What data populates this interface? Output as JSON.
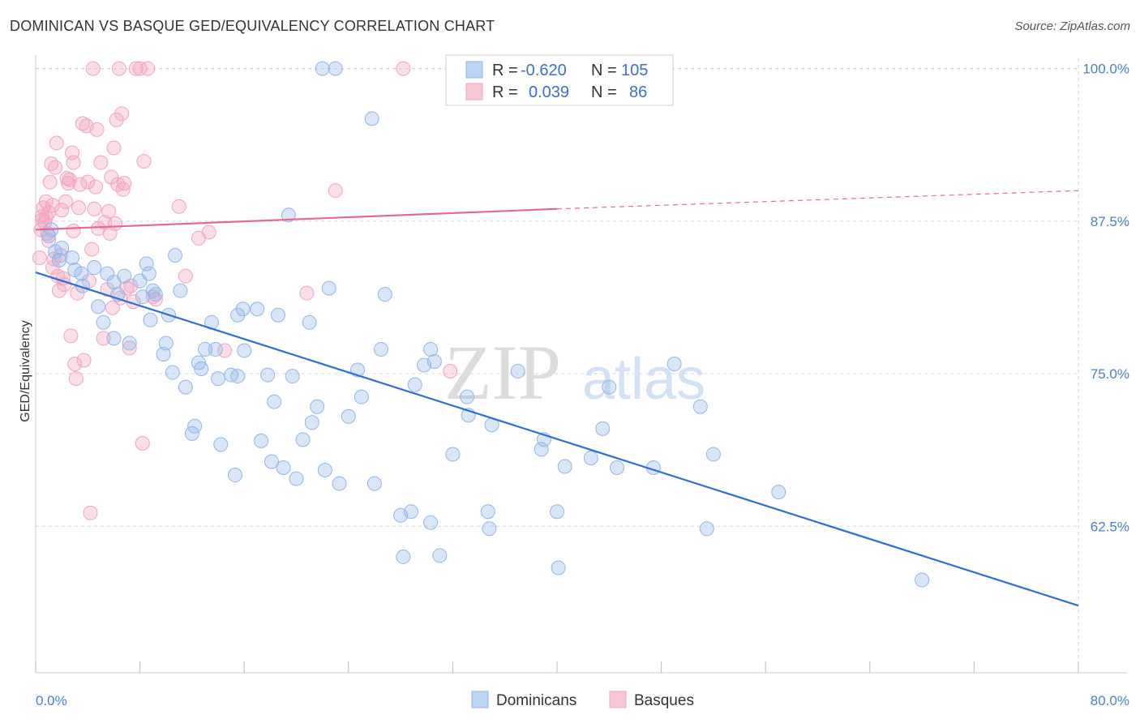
{
  "title": "DOMINICAN VS BASQUE GED/EQUIVALENCY CORRELATION CHART",
  "source": "Source: ZipAtlas.com",
  "watermark": {
    "zip": "ZIP",
    "atlas": "atlas"
  },
  "colors": {
    "dominican": "#8fb6ea",
    "dominican_line": "#2d6fd1",
    "basque": "#f4a3bd",
    "basque_line": "#e46a94",
    "tick": "#4a7fd0",
    "grid": "#d8d8d8"
  },
  "legend_box": {
    "rows": [
      {
        "r_label": "R =",
        "r_value": "-0.620",
        "n_label": "N =",
        "n_value": "105"
      },
      {
        "r_label": "R =",
        "r_value": "0.039",
        "n_label": "N =",
        "n_value": "86"
      }
    ]
  },
  "chart_data": {
    "type": "scatter",
    "title": "DOMINICAN VS BASQUE GED/EQUIVALENCY CORRELATION CHART",
    "xlabel": "",
    "ylabel": "GED/Equivalency",
    "xlim": [
      0,
      80
    ],
    "ylim": [
      50.5,
      101.5
    ],
    "x_tick_labels": [
      "0.0%",
      "80.0%"
    ],
    "y_ticks": [
      62.5,
      75.0,
      87.5,
      100.0
    ],
    "y_tick_labels": [
      "62.5%",
      "75.0%",
      "87.5%",
      "100.0%"
    ],
    "grid": true,
    "legend_position": "top-center",
    "series": [
      {
        "name": "Dominicans",
        "r": -0.62,
        "n": 105,
        "trend": {
          "x": [
            0,
            80
          ],
          "y": [
            83.3,
            56.0
          ]
        },
        "points": [
          [
            1.2,
            86.8
          ],
          [
            1.5,
            85.0
          ],
          [
            2.0,
            85.3
          ],
          [
            2.8,
            84.5
          ],
          [
            3.0,
            83.5
          ],
          [
            3.6,
            82.2
          ],
          [
            4.5,
            83.7
          ],
          [
            5.5,
            83.2
          ],
          [
            4.8,
            80.5
          ],
          [
            5.2,
            79.2
          ],
          [
            6.0,
            82.5
          ],
          [
            6.3,
            81.5
          ],
          [
            6.8,
            83.0
          ],
          [
            7.2,
            77.5
          ],
          [
            8.0,
            82.6
          ],
          [
            8.2,
            81.3
          ],
          [
            8.5,
            84.0
          ],
          [
            8.7,
            83.2
          ],
          [
            8.8,
            79.4
          ],
          [
            9.0,
            81.8
          ],
          [
            9.2,
            81.5
          ],
          [
            9.8,
            76.6
          ],
          [
            10.2,
            79.8
          ],
          [
            10.5,
            75.1
          ],
          [
            10.7,
            84.7
          ],
          [
            11.1,
            81.8
          ],
          [
            11.5,
            73.9
          ],
          [
            12.0,
            70.1
          ],
          [
            12.2,
            70.7
          ],
          [
            12.5,
            75.9
          ],
          [
            12.7,
            75.4
          ],
          [
            13.0,
            77.0
          ],
          [
            13.5,
            79.2
          ],
          [
            13.8,
            77.0
          ],
          [
            14.0,
            74.6
          ],
          [
            14.2,
            69.2
          ],
          [
            15.0,
            74.9
          ],
          [
            15.3,
            66.7
          ],
          [
            15.5,
            79.8
          ],
          [
            15.9,
            80.3
          ],
          [
            16.0,
            76.9
          ],
          [
            17.0,
            80.3
          ],
          [
            17.3,
            69.5
          ],
          [
            17.8,
            74.9
          ],
          [
            18.1,
            67.8
          ],
          [
            18.3,
            72.7
          ],
          [
            18.6,
            79.8
          ],
          [
            19.0,
            67.3
          ],
          [
            19.4,
            88.0
          ],
          [
            19.7,
            74.8
          ],
          [
            20.0,
            66.4
          ],
          [
            20.5,
            69.6
          ],
          [
            21.0,
            79.2
          ],
          [
            21.2,
            71.0
          ],
          [
            21.6,
            72.3
          ],
          [
            22.2,
            67.1
          ],
          [
            22.5,
            82.0
          ],
          [
            23.3,
            66.0
          ],
          [
            24.0,
            71.5
          ],
          [
            24.7,
            75.3
          ],
          [
            25.0,
            73.1
          ],
          [
            26.0,
            66.0
          ],
          [
            26.8,
            81.5
          ],
          [
            28.0,
            63.4
          ],
          [
            28.2,
            60.0
          ],
          [
            28.8,
            63.7
          ],
          [
            29.1,
            74.1
          ],
          [
            29.8,
            75.7
          ],
          [
            30.3,
            77.0
          ],
          [
            30.3,
            62.8
          ],
          [
            30.6,
            76.0
          ],
          [
            31.0,
            60.1
          ],
          [
            32.0,
            68.4
          ],
          [
            33.1,
            73.1
          ],
          [
            33.2,
            71.6
          ],
          [
            34.7,
            63.7
          ],
          [
            34.8,
            62.3
          ],
          [
            35.0,
            70.8
          ],
          [
            37.0,
            75.2
          ],
          [
            38.8,
            68.8
          ],
          [
            39.0,
            69.6
          ],
          [
            40.0,
            63.7
          ],
          [
            40.1,
            59.1
          ],
          [
            40.6,
            67.4
          ],
          [
            42.6,
            68.1
          ],
          [
            43.5,
            70.5
          ],
          [
            44.0,
            73.9
          ],
          [
            44.6,
            67.3
          ],
          [
            47.4,
            67.3
          ],
          [
            49.0,
            75.8
          ],
          [
            51.0,
            72.3
          ],
          [
            51.5,
            62.3
          ],
          [
            52.0,
            68.4
          ],
          [
            57.0,
            65.3
          ],
          [
            68.0,
            58.1
          ],
          [
            22.0,
            100.0
          ],
          [
            23.0,
            100.0
          ],
          [
            25.8,
            95.9
          ],
          [
            1.0,
            86.3
          ],
          [
            1.8,
            84.3
          ],
          [
            3.5,
            83.2
          ],
          [
            6.0,
            77.9
          ],
          [
            10.0,
            77.5
          ],
          [
            15.5,
            74.8
          ],
          [
            26.5,
            77.0
          ]
        ]
      },
      {
        "name": "Basques",
        "r": 0.039,
        "n": 86,
        "trend": {
          "x": [
            0,
            40
          ],
          "y": [
            86.8,
            88.5
          ],
          "dashed_to": [
            80,
            90.0
          ]
        },
        "points": [
          [
            0.3,
            84.5
          ],
          [
            0.4,
            86.8
          ],
          [
            0.5,
            87.9
          ],
          [
            0.6,
            88.6
          ],
          [
            0.7,
            87.4
          ],
          [
            0.8,
            89.1
          ],
          [
            0.9,
            86.5
          ],
          [
            1.0,
            88.2
          ],
          [
            1.1,
            90.7
          ],
          [
            1.2,
            92.2
          ],
          [
            1.3,
            88.8
          ],
          [
            1.5,
            91.9
          ],
          [
            1.6,
            93.9
          ],
          [
            1.7,
            83.0
          ],
          [
            1.8,
            81.8
          ],
          [
            1.9,
            84.7
          ],
          [
            2.0,
            88.4
          ],
          [
            2.1,
            82.8
          ],
          [
            2.2,
            82.3
          ],
          [
            2.3,
            89.1
          ],
          [
            2.5,
            90.6
          ],
          [
            2.6,
            90.9
          ],
          [
            2.7,
            78.1
          ],
          [
            2.8,
            93.1
          ],
          [
            2.9,
            92.3
          ],
          [
            3.0,
            75.8
          ],
          [
            3.1,
            74.6
          ],
          [
            3.3,
            88.6
          ],
          [
            3.4,
            90.5
          ],
          [
            3.6,
            95.5
          ],
          [
            3.7,
            76.1
          ],
          [
            3.9,
            95.3
          ],
          [
            4.0,
            90.7
          ],
          [
            4.1,
            82.6
          ],
          [
            4.2,
            63.6
          ],
          [
            4.4,
            100.0
          ],
          [
            4.5,
            88.5
          ],
          [
            4.6,
            90.3
          ],
          [
            4.7,
            95.0
          ],
          [
            4.8,
            86.9
          ],
          [
            5.0,
            92.3
          ],
          [
            5.2,
            77.9
          ],
          [
            5.3,
            87.4
          ],
          [
            5.5,
            81.9
          ],
          [
            5.6,
            88.3
          ],
          [
            5.7,
            86.5
          ],
          [
            5.8,
            91.1
          ],
          [
            5.9,
            80.4
          ],
          [
            6.0,
            93.5
          ],
          [
            6.1,
            87.3
          ],
          [
            6.2,
            95.8
          ],
          [
            6.3,
            90.5
          ],
          [
            6.5,
            81.2
          ],
          [
            6.6,
            96.3
          ],
          [
            6.7,
            90.1
          ],
          [
            6.8,
            90.6
          ],
          [
            7.0,
            82.0
          ],
          [
            7.2,
            77.1
          ],
          [
            7.3,
            82.2
          ],
          [
            7.5,
            80.9
          ],
          [
            8.0,
            100.0
          ],
          [
            8.2,
            69.3
          ],
          [
            8.3,
            92.4
          ],
          [
            8.6,
            100.0
          ],
          [
            9.0,
            81.3
          ],
          [
            9.2,
            81.1
          ],
          [
            11.0,
            88.7
          ],
          [
            11.5,
            83.0
          ],
          [
            12.5,
            86.1
          ],
          [
            13.3,
            86.6
          ],
          [
            14.5,
            76.9
          ],
          [
            20.8,
            81.6
          ],
          [
            23.0,
            90.0
          ],
          [
            28.2,
            100.0
          ],
          [
            31.8,
            75.2
          ],
          [
            0.5,
            87.6
          ],
          [
            1.0,
            85.9
          ],
          [
            1.4,
            84.4
          ],
          [
            2.4,
            91.0
          ],
          [
            3.2,
            81.6
          ],
          [
            6.4,
            100.0
          ],
          [
            7.7,
            100.0
          ],
          [
            0.8,
            87.8
          ],
          [
            1.3,
            83.7
          ],
          [
            2.9,
            86.7
          ],
          [
            4.3,
            85.2
          ]
        ]
      }
    ]
  }
}
